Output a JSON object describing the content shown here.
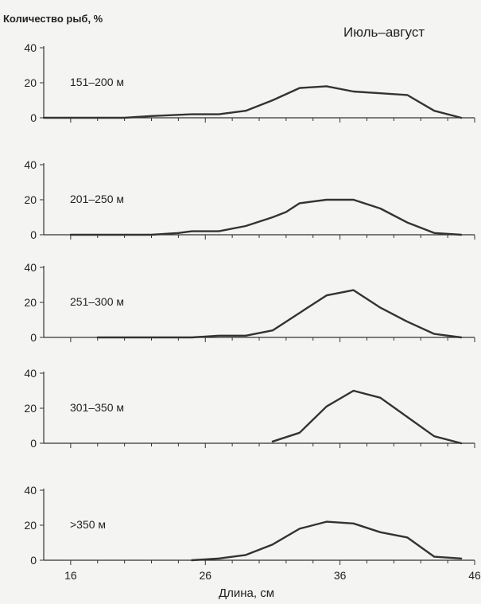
{
  "chart_data": {
    "type": "line",
    "title": "Июль–август",
    "ylabel": "Количество рыб, %",
    "xlabel": "Длина, см",
    "xlim": [
      14,
      46
    ],
    "ylim": [
      0,
      40
    ],
    "x_ticks": [
      16,
      26,
      36,
      46
    ],
    "y_ticks": [
      0,
      20,
      40
    ],
    "panels": [
      {
        "label": "151–200 м",
        "x": [
          14,
          20,
          22,
          25,
          27,
          29,
          31,
          33,
          35,
          37,
          39,
          41,
          43,
          45
        ],
        "y": [
          0,
          0,
          1,
          2,
          2,
          4,
          10,
          17,
          18,
          15,
          14,
          13,
          4,
          0
        ]
      },
      {
        "label": "201–250 м",
        "x": [
          16,
          22,
          24,
          25,
          27,
          29,
          31,
          32,
          33,
          35,
          37,
          39,
          41,
          43,
          45
        ],
        "y": [
          0,
          0,
          1,
          2,
          2,
          5,
          10,
          13,
          18,
          20,
          20,
          15,
          7,
          1,
          0
        ]
      },
      {
        "label": "251–300 м",
        "x": [
          18,
          22,
          25,
          27,
          29,
          31,
          33,
          35,
          37,
          39,
          41,
          43,
          45
        ],
        "y": [
          0,
          0,
          0,
          1,
          1,
          4,
          14,
          24,
          27,
          17,
          9,
          2,
          0
        ]
      },
      {
        "label": "301–350 м",
        "x": [
          31,
          33,
          35,
          37,
          39,
          41,
          43,
          45
        ],
        "y": [
          1,
          6,
          21,
          30,
          26,
          15,
          4,
          0
        ]
      },
      {
        "label": ">350 м",
        "x": [
          25,
          27,
          29,
          31,
          33,
          35,
          37,
          39,
          41,
          43,
          45
        ],
        "y": [
          0,
          1,
          3,
          9,
          18,
          22,
          21,
          16,
          13,
          2,
          1
        ]
      }
    ]
  }
}
